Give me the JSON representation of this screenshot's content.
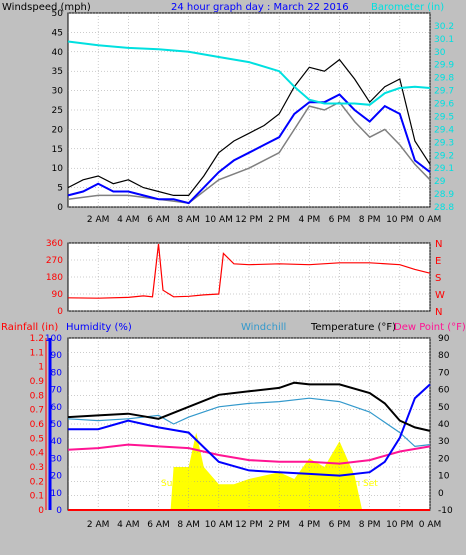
{
  "header": {
    "windspeed_label": "Windspeed (mph)",
    "graph_title": "24 hour graph day : March 22 2016",
    "barometer_label": "Barometer (in)"
  },
  "bottom_labels": {
    "rainfall": "Rainfall (in)",
    "humidity": "Humidity (%)",
    "windchill": "Windchill",
    "temperature": "Temperature (°F)",
    "dewpoint": "Dew Point (°F)"
  },
  "annotations": {
    "sunrise": "Sun Ris",
    "sunset": "Sun Set"
  },
  "colors": {
    "background": "#c0c0c0",
    "plot_background": "#ffffff",
    "grid": "#9a9a9a",
    "wind_gust": "#000000",
    "wind_max": "#808080",
    "wind_avg": "#0000ff",
    "barometer": "#00e0e0",
    "direction": "#ff0000",
    "rainfall": "#ff0000",
    "humidity": "#0000ff",
    "windchill": "#3399cc",
    "temperature": "#000000",
    "dewpoint": "#ff1493",
    "solar": "#ffff00",
    "title": "#0000ff"
  },
  "chart_data": [
    {
      "name": "wind-barometer",
      "type": "line",
      "x_ticks": [
        "2 AM",
        "4 AM",
        "6 AM",
        "8 AM",
        "10 AM",
        "12 PM",
        "2 PM",
        "4 PM",
        "6 PM",
        "8 PM",
        "10 PM",
        "0 AM"
      ],
      "x_hours": [
        0,
        24
      ],
      "ylim_left": [
        0,
        50
      ],
      "y_ticks_left": [
        0,
        5,
        10,
        15,
        20,
        25,
        30,
        35,
        40,
        45,
        50
      ],
      "ylim_right": [
        28.8,
        30.3
      ],
      "y_ticks_right": [
        "28.8",
        "28.9",
        "29",
        "29.1",
        "29.2",
        "29.3",
        "29.4",
        "29.5",
        "29.6",
        "29.7",
        "29.8",
        "29.9",
        "30",
        "30.1",
        "30.2"
      ],
      "series": [
        {
          "key": "gust",
          "points": [
            [
              0,
              5
            ],
            [
              1,
              7
            ],
            [
              2,
              8
            ],
            [
              3,
              6
            ],
            [
              4,
              7
            ],
            [
              5,
              5
            ],
            [
              6,
              4
            ],
            [
              7,
              3
            ],
            [
              8,
              3
            ],
            [
              9,
              8
            ],
            [
              10,
              14
            ],
            [
              11,
              17
            ],
            [
              12,
              19
            ],
            [
              13,
              21
            ],
            [
              14,
              24
            ],
            [
              15,
              31
            ],
            [
              16,
              36
            ],
            [
              17,
              35
            ],
            [
              18,
              38
            ],
            [
              19,
              33
            ],
            [
              20,
              27
            ],
            [
              21,
              31
            ],
            [
              22,
              33
            ],
            [
              23,
              17
            ],
            [
              24,
              11
            ]
          ]
        },
        {
          "key": "max",
          "points": [
            [
              0,
              2
            ],
            [
              2,
              3
            ],
            [
              4,
              3
            ],
            [
              6,
              2
            ],
            [
              8,
              1
            ],
            [
              10,
              7
            ],
            [
              12,
              10
            ],
            [
              14,
              14
            ],
            [
              15,
              20
            ],
            [
              16,
              26
            ],
            [
              17,
              25
            ],
            [
              18,
              27
            ],
            [
              19,
              22
            ],
            [
              20,
              18
            ],
            [
              21,
              20
            ],
            [
              22,
              16
            ],
            [
              23,
              11
            ],
            [
              24,
              7
            ]
          ]
        },
        {
          "key": "avg",
          "points": [
            [
              0,
              3
            ],
            [
              1,
              4
            ],
            [
              2,
              6
            ],
            [
              3,
              4
            ],
            [
              4,
              4
            ],
            [
              5,
              3
            ],
            [
              6,
              2
            ],
            [
              7,
              2
            ],
            [
              8,
              1
            ],
            [
              9,
              5
            ],
            [
              10,
              9
            ],
            [
              11,
              12
            ],
            [
              12,
              14
            ],
            [
              13,
              16
            ],
            [
              14,
              18
            ],
            [
              15,
              24
            ],
            [
              16,
              27
            ],
            [
              17,
              27
            ],
            [
              18,
              29
            ],
            [
              19,
              25
            ],
            [
              20,
              22
            ],
            [
              21,
              26
            ],
            [
              22,
              24
            ],
            [
              23,
              12
            ],
            [
              24,
              9
            ]
          ]
        },
        {
          "key": "barometer",
          "points": [
            [
              0,
              30.08
            ],
            [
              2,
              30.05
            ],
            [
              4,
              30.03
            ],
            [
              6,
              30.02
            ],
            [
              8,
              30.0
            ],
            [
              10,
              29.96
            ],
            [
              12,
              29.92
            ],
            [
              14,
              29.85
            ],
            [
              15,
              29.73
            ],
            [
              16,
              29.63
            ],
            [
              17,
              29.6
            ],
            [
              18,
              29.6
            ],
            [
              19,
              29.6
            ],
            [
              20,
              29.59
            ],
            [
              21,
              29.68
            ],
            [
              22,
              29.72
            ],
            [
              23,
              29.73
            ],
            [
              24,
              29.72
            ]
          ]
        }
      ]
    },
    {
      "name": "wind-direction",
      "type": "line",
      "ylim": [
        0,
        360
      ],
      "y_ticks": [
        0,
        90,
        180,
        270,
        360
      ],
      "compass_ticks": [
        "N",
        "W",
        "S",
        "E",
        "N"
      ],
      "series": [
        {
          "key": "direction",
          "points": [
            [
              0,
              70
            ],
            [
              2,
              68
            ],
            [
              4,
              72
            ],
            [
              5,
              80
            ],
            [
              5.6,
              75
            ],
            [
              6,
              355
            ],
            [
              6.3,
              110
            ],
            [
              7,
              75
            ],
            [
              8,
              78
            ],
            [
              9,
              85
            ],
            [
              10,
              90
            ],
            [
              10.3,
              305
            ],
            [
              11,
              250
            ],
            [
              12,
              245
            ],
            [
              14,
              250
            ],
            [
              16,
              245
            ],
            [
              18,
              255
            ],
            [
              20,
              255
            ],
            [
              22,
              245
            ],
            [
              23,
              220
            ],
            [
              24,
              200
            ]
          ]
        }
      ]
    },
    {
      "name": "temperature-humidity",
      "type": "line",
      "ylim_rain": [
        0,
        1.2
      ],
      "y_ticks_rain": [
        "0",
        "0.1",
        "0.2",
        "0.3",
        "0.4",
        "0.5",
        "0.6",
        "0.7",
        "0.8",
        "0.9",
        "1",
        "1.1",
        "1.2"
      ],
      "ylim_humidity": [
        0,
        100
      ],
      "y_ticks_humidity": [
        0,
        10,
        20,
        30,
        40,
        50,
        60,
        70,
        80,
        90,
        100
      ],
      "ylim_temp": [
        -10,
        90
      ],
      "y_ticks_temp": [
        -10,
        0,
        10,
        20,
        30,
        40,
        50,
        60,
        70,
        80,
        90
      ],
      "series": [
        {
          "key": "solar",
          "points": [
            [
              0,
              0
            ],
            [
              6.8,
              0
            ],
            [
              7,
              25
            ],
            [
              8,
              25
            ],
            [
              8.5,
              45
            ],
            [
              9,
              25
            ],
            [
              10,
              15
            ],
            [
              11,
              15
            ],
            [
              12,
              18
            ],
            [
              13,
              20
            ],
            [
              14,
              22
            ],
            [
              15,
              18
            ],
            [
              16,
              30
            ],
            [
              17,
              25
            ],
            [
              18,
              40
            ],
            [
              19,
              20
            ],
            [
              19.5,
              0
            ],
            [
              24,
              0
            ]
          ]
        },
        {
          "key": "rainfall",
          "points": [
            [
              0,
              0
            ],
            [
              24,
              0
            ]
          ]
        },
        {
          "key": "humidity",
          "points": [
            [
              0,
              47
            ],
            [
              2,
              47
            ],
            [
              4,
              52
            ],
            [
              6,
              48
            ],
            [
              8,
              45
            ],
            [
              10,
              28
            ],
            [
              12,
              23
            ],
            [
              14,
              22
            ],
            [
              16,
              21
            ],
            [
              18,
              20
            ],
            [
              20,
              22
            ],
            [
              21,
              28
            ],
            [
              22,
              42
            ],
            [
              23,
              65
            ],
            [
              24,
              73
            ]
          ]
        },
        {
          "key": "windchill",
          "points": [
            [
              0,
              43
            ],
            [
              2,
              42
            ],
            [
              4,
              43
            ],
            [
              6,
              45
            ],
            [
              7,
              40
            ],
            [
              8,
              44
            ],
            [
              10,
              50
            ],
            [
              12,
              52
            ],
            [
              14,
              53
            ],
            [
              16,
              55
            ],
            [
              18,
              53
            ],
            [
              20,
              47
            ],
            [
              22,
              35
            ],
            [
              23,
              27
            ],
            [
              24,
              28
            ]
          ]
        },
        {
          "key": "temperature",
          "points": [
            [
              0,
              44
            ],
            [
              2,
              45
            ],
            [
              4,
              46
            ],
            [
              6,
              43
            ],
            [
              8,
              50
            ],
            [
              10,
              57
            ],
            [
              12,
              59
            ],
            [
              14,
              61
            ],
            [
              15,
              64
            ],
            [
              16,
              63
            ],
            [
              18,
              63
            ],
            [
              20,
              58
            ],
            [
              21,
              52
            ],
            [
              22,
              42
            ],
            [
              23,
              38
            ],
            [
              24,
              36
            ]
          ]
        },
        {
          "key": "dewpoint",
          "points": [
            [
              0,
              25
            ],
            [
              2,
              26
            ],
            [
              4,
              28
            ],
            [
              6,
              27
            ],
            [
              8,
              26
            ],
            [
              10,
              22
            ],
            [
              12,
              19
            ],
            [
              14,
              18
            ],
            [
              16,
              18
            ],
            [
              18,
              17
            ],
            [
              20,
              19
            ],
            [
              22,
              24
            ],
            [
              24,
              27
            ]
          ]
        }
      ]
    }
  ]
}
